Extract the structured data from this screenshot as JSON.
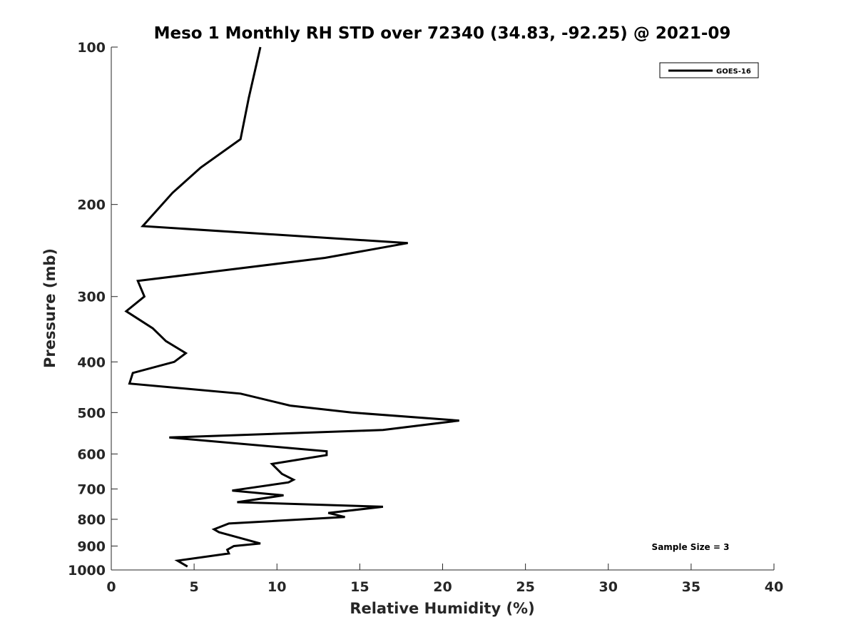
{
  "chart_data": {
    "type": "line",
    "title": "Meso 1 Monthly RH STD over 72340 (34.83, -92.25) @ 2021-09",
    "xlabel": "Relative Humidity (%)",
    "ylabel": "Pressure (mb)",
    "xlim": [
      0,
      40
    ],
    "ylim": [
      100,
      1000
    ],
    "y_scale": "log",
    "y_reversed": true,
    "x_ticks": [
      0,
      5,
      10,
      15,
      20,
      25,
      30,
      35,
      40
    ],
    "x_tick_labels": [
      "0",
      "5",
      "10",
      "15",
      "20",
      "25",
      "30",
      "35",
      "40"
    ],
    "y_ticks": [
      100,
      200,
      300,
      400,
      500,
      600,
      700,
      800,
      900,
      1000
    ],
    "y_tick_labels": [
      "100",
      "200",
      "300",
      "400",
      "500",
      "600",
      "700",
      "800",
      "900",
      "1000"
    ],
    "grid": false,
    "legend_position": "top-right",
    "series": [
      {
        "name": "GOES-16",
        "color": "#000000",
        "points": [
          [
            9.0,
            100
          ],
          [
            8.3,
            125
          ],
          [
            7.8,
            150
          ],
          [
            5.4,
            170
          ],
          [
            3.7,
            190
          ],
          [
            1.9,
            220
          ],
          [
            17.9,
            237
          ],
          [
            12.9,
            253
          ],
          [
            1.6,
            280
          ],
          [
            2.0,
            300
          ],
          [
            0.9,
            320
          ],
          [
            2.5,
            345
          ],
          [
            3.3,
            365
          ],
          [
            4.5,
            385
          ],
          [
            3.8,
            400
          ],
          [
            1.3,
            420
          ],
          [
            1.1,
            440
          ],
          [
            7.8,
            460
          ],
          [
            10.8,
            485
          ],
          [
            14.5,
            500
          ],
          [
            21.0,
            518
          ],
          [
            16.4,
            540
          ],
          [
            3.5,
            558
          ],
          [
            13.0,
            593
          ],
          [
            13.0,
            603
          ],
          [
            9.7,
            627
          ],
          [
            10.3,
            655
          ],
          [
            11.0,
            672
          ],
          [
            10.7,
            680
          ],
          [
            7.3,
            705
          ],
          [
            10.4,
            720
          ],
          [
            7.6,
            742
          ],
          [
            16.4,
            757
          ],
          [
            13.1,
            778
          ],
          [
            14.1,
            792
          ],
          [
            7.1,
            815
          ],
          [
            6.2,
            836
          ],
          [
            6.5,
            847
          ],
          [
            9.0,
            890
          ],
          [
            7.4,
            900
          ],
          [
            7.0,
            915
          ],
          [
            7.1,
            930
          ],
          [
            4.0,
            960
          ],
          [
            4.6,
            985
          ]
        ]
      }
    ],
    "annotation": "Sample Size = 3"
  }
}
